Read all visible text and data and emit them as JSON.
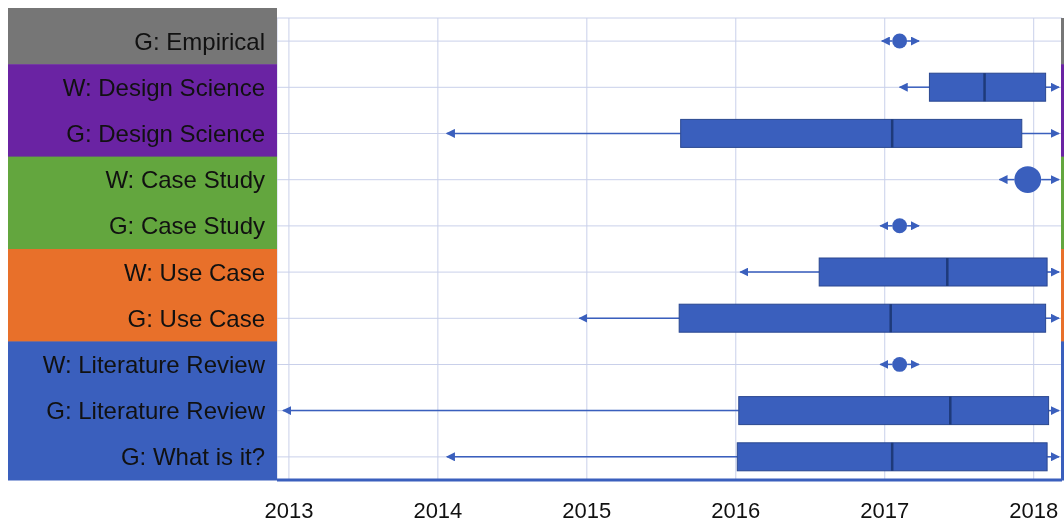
{
  "chart_data": {
    "type": "box",
    "orientation": "horizontal",
    "categories": [
      "G: Empirical",
      "W: Design Science",
      "G: Design Science",
      "W: Case Study",
      "G: Case Study",
      "W: Use Case",
      "G: Use Case",
      "W: Literature Review",
      "G: Literature Review",
      "G: What is it?"
    ],
    "series": [
      {
        "color": "#3a5fbd",
        "boxes": [
          {
            "low": 2016.98,
            "q1": 2017.05,
            "median": 2017.1,
            "q3": 2017.15,
            "high": 2017.23
          },
          {
            "low": 2017.1,
            "q1": 2017.3,
            "median": 2017.67,
            "q3": 2018.08,
            "high": 2018.17
          },
          {
            "low": 2014.06,
            "q1": 2015.63,
            "median": 2017.05,
            "q3": 2017.92,
            "high": 2018.17
          },
          {
            "low": 2017.77,
            "q1": 2017.87,
            "median": 2017.96,
            "q3": 2018.05,
            "high": 2018.17
          },
          {
            "low": 2016.97,
            "q1": 2017.05,
            "median": 2017.1,
            "q3": 2017.15,
            "high": 2017.23
          },
          {
            "low": 2016.03,
            "q1": 2016.56,
            "median": 2017.42,
            "q3": 2018.09,
            "high": 2018.17
          },
          {
            "low": 2014.95,
            "q1": 2015.62,
            "median": 2017.04,
            "q3": 2018.08,
            "high": 2018.17
          },
          {
            "low": 2016.97,
            "q1": 2017.05,
            "median": 2017.1,
            "q3": 2017.15,
            "high": 2017.23
          },
          {
            "low": 2012.96,
            "q1": 2016.02,
            "median": 2017.44,
            "q3": 2018.1,
            "high": 2018.17
          },
          {
            "low": 2014.06,
            "q1": 2016.01,
            "median": 2017.05,
            "q3": 2018.09,
            "high": 2018.17
          }
        ]
      }
    ],
    "xlim": [
      2012.92,
      2018.19
    ],
    "xticks": [
      2013,
      2014,
      2015,
      2016,
      2017,
      2018
    ],
    "grid": true
  }
}
